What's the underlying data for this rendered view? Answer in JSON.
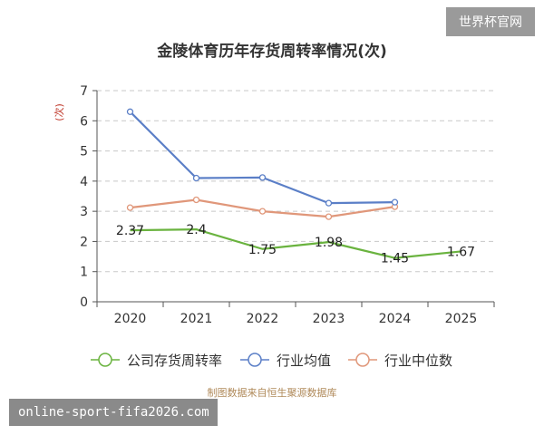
{
  "watermark": "世界杯官网",
  "site_banner": "online-sport-fifa2026.com",
  "source_note": "制图数据来自恒生聚源数据库",
  "chart_data": {
    "type": "line",
    "title": "金陵体育历年存货周转率情况(次)",
    "ylabel": "(次)",
    "xlabel": "",
    "categories": [
      "2020",
      "2021",
      "2022",
      "2023",
      "2024",
      "2025"
    ],
    "ylim": [
      0,
      7
    ],
    "yticks": [
      0,
      1,
      2,
      3,
      4,
      5,
      6,
      7
    ],
    "grid": true,
    "legend_position": "bottom",
    "series": [
      {
        "name": "公司存货周转率",
        "color": "#6ab33f",
        "values": [
          2.37,
          2.4,
          1.75,
          1.98,
          1.45,
          1.67
        ],
        "labels": [
          "2.37",
          "2.4",
          "1.75",
          "1.98",
          "1.45",
          "1.67"
        ],
        "markers": false
      },
      {
        "name": "行业均值",
        "color": "#5b7fc7",
        "values": [
          6.3,
          4.1,
          4.12,
          3.27,
          3.3,
          null
        ],
        "markers": true
      },
      {
        "name": "行业中位数",
        "color": "#e0977a",
        "values": [
          3.12,
          3.38,
          3.0,
          2.82,
          3.15,
          null
        ],
        "markers": true
      }
    ]
  }
}
